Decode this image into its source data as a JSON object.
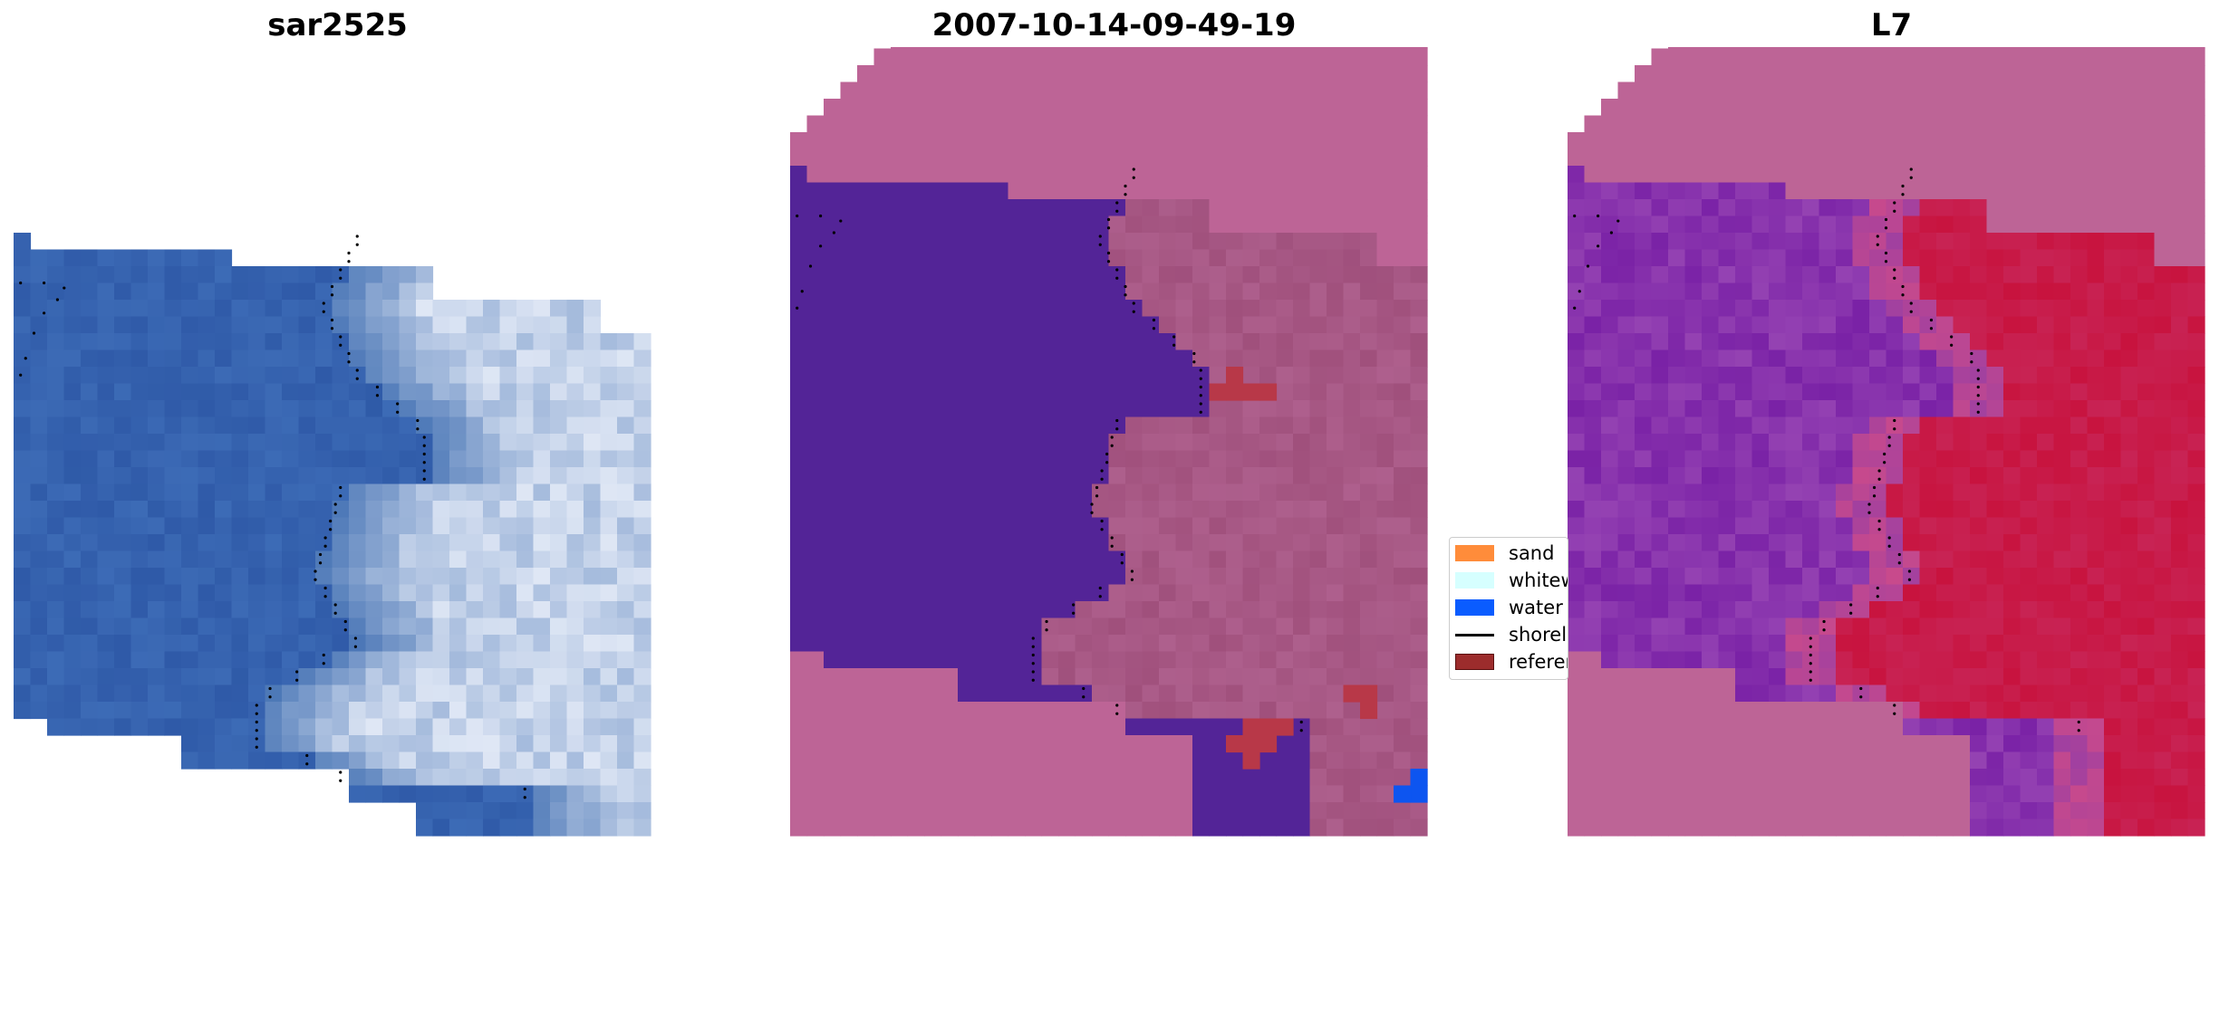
{
  "panels": [
    {
      "title": "sar2525",
      "kind": "rgb"
    },
    {
      "title": "2007-10-14-09-49-19",
      "kind": "classified"
    },
    {
      "title": "L7",
      "kind": "probability"
    }
  ],
  "legend": {
    "items": [
      {
        "label": "sand",
        "color": "#ff8c3a",
        "shape": "patch"
      },
      {
        "label": "whitewater",
        "color": "#d6ffff",
        "shape": "patch"
      },
      {
        "label": "water",
        "color": "#0a5cff",
        "shape": "patch"
      },
      {
        "label": "shoreline",
        "color": "#000000",
        "shape": "line"
      },
      {
        "label": "reference",
        "color": "#9c2c2c",
        "shape": "patch"
      }
    ]
  },
  "colors": {
    "nodata_pink": "#bd6496",
    "water_class": "#532497",
    "land_class": "#a0507c",
    "red_class": "#b83848",
    "blue_pixels": "#0d55f0",
    "rgb_water": "#2f5aa8",
    "rgb_surf": "#dfe7f5",
    "prob_low": "#7a22a6",
    "prob_high": "#c8133e"
  }
}
